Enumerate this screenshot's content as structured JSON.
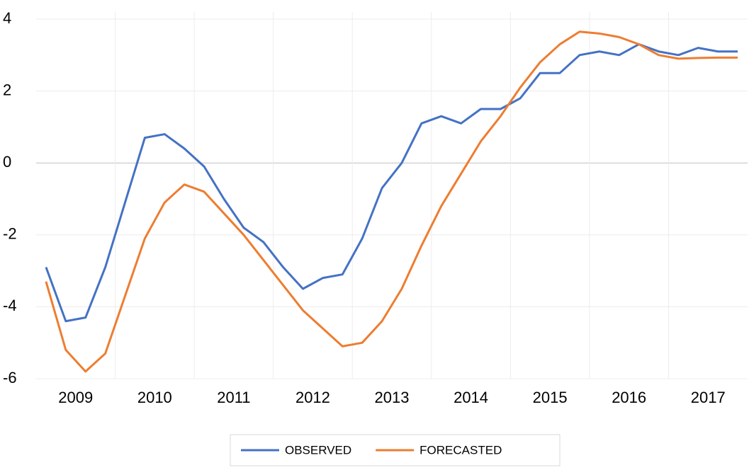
{
  "chart_data": {
    "type": "line",
    "categories": [
      "2009",
      null,
      null,
      null,
      "2010",
      null,
      null,
      null,
      "2011",
      null,
      null,
      null,
      "2012",
      null,
      null,
      null,
      "2013",
      null,
      null,
      null,
      "2014",
      null,
      null,
      null,
      "2015",
      null,
      null,
      null,
      "2016",
      null,
      null,
      null,
      "2017",
      null,
      null,
      null
    ],
    "series": [
      {
        "name": "OBSERVED",
        "color": "#4472c4",
        "values": [
          -2.9,
          -4.4,
          -4.3,
          -2.9,
          -1.1,
          0.7,
          0.8,
          0.4,
          -0.1,
          -1.0,
          -1.8,
          -2.2,
          -2.9,
          -3.5,
          -3.2,
          -3.1,
          -2.1,
          -0.7,
          0.0,
          1.1,
          1.3,
          1.1,
          1.5,
          1.5,
          1.8,
          2.5,
          2.5,
          3.0,
          3.1,
          3.0,
          3.3,
          3.1,
          3.0,
          3.2,
          3.1,
          3.1
        ]
      },
      {
        "name": "FORECASTED",
        "color": "#ed7d31",
        "values": [
          -3.3,
          -5.2,
          -5.8,
          -5.3,
          -3.7,
          -2.1,
          -1.1,
          -0.6,
          -0.8,
          -1.4,
          -2.0,
          -2.7,
          -3.4,
          -4.1,
          -4.6,
          -5.1,
          -5.0,
          -4.4,
          -3.5,
          -2.3,
          -1.2,
          -0.3,
          0.6,
          1.3,
          2.1,
          2.8,
          3.3,
          3.65,
          3.6,
          3.5,
          3.3,
          3.0,
          2.9,
          2.92,
          2.93,
          2.93
        ]
      }
    ],
    "ylim": [
      -6,
      4
    ],
    "yticks": [
      -6,
      -4,
      -2,
      0,
      2,
      4
    ],
    "grid": true,
    "legend": "bottom"
  }
}
